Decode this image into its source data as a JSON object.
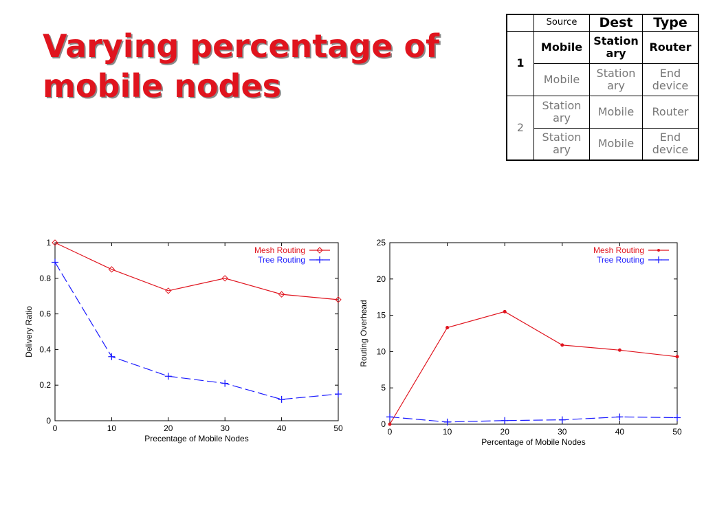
{
  "title": {
    "line1": "Varying percentage of",
    "line2": "mobile nodes"
  },
  "table": {
    "headers": [
      "",
      "Source",
      "Dest",
      "Type"
    ],
    "groups": [
      {
        "label": "1",
        "rows": [
          [
            "Mobile",
            "Station\nary",
            "Router"
          ],
          [
            "Mobile",
            "Station\nary",
            "End\ndevice"
          ]
        ]
      },
      {
        "label": "2",
        "rows": [
          [
            "Station\nary",
            "Mobile",
            "Router"
          ],
          [
            "Station\nary",
            "Mobile",
            "End\ndevice"
          ]
        ]
      }
    ]
  },
  "colors": {
    "title": "#e0141e",
    "mesh": "#e0141e",
    "tree": "#1a1aff"
  },
  "chart_data": [
    {
      "type": "line",
      "xlabel": "Precentage of Mobile Nodes",
      "ylabel": "Delivery Ratio",
      "xlim": [
        0,
        50
      ],
      "ylim": [
        0,
        1
      ],
      "x_ticks": [
        0,
        10,
        20,
        30,
        40,
        50
      ],
      "y_ticks": [
        0,
        0.2,
        0.4,
        0.6,
        0.8,
        1
      ],
      "y_tick_labels": [
        "0",
        "0.2",
        "0.4",
        "0.6",
        "0.8",
        "1"
      ],
      "legend_position": "top-right",
      "series": [
        {
          "name": "Mesh Routing",
          "x": [
            0,
            10,
            20,
            30,
            40,
            50
          ],
          "y": [
            1.0,
            0.85,
            0.73,
            0.8,
            0.71,
            0.68
          ],
          "marker": "diamond",
          "style": "solid"
        },
        {
          "name": "Tree Routing",
          "x": [
            0,
            10,
            20,
            30,
            40,
            50
          ],
          "y": [
            0.89,
            0.36,
            0.25,
            0.21,
            0.12,
            0.15
          ],
          "marker": "plus",
          "style": "dashed"
        }
      ]
    },
    {
      "type": "line",
      "xlabel": "Percentage of Mobile Nodes",
      "ylabel": "Routing Overhead",
      "xlim": [
        0,
        50
      ],
      "ylim": [
        0,
        25
      ],
      "x_ticks": [
        0,
        10,
        20,
        30,
        40,
        50
      ],
      "y_ticks": [
        0,
        5,
        10,
        15,
        20,
        25
      ],
      "y_tick_labels": [
        "0",
        "5",
        "10",
        "15",
        "20",
        "25"
      ],
      "legend_position": "top-right",
      "series": [
        {
          "name": "Mesh Routing",
          "x": [
            0,
            10,
            20,
            30,
            40,
            50
          ],
          "y": [
            0,
            13.3,
            15.5,
            10.9,
            10.2,
            9.3
          ],
          "marker": "dot",
          "style": "solid"
        },
        {
          "name": "Tree Routing",
          "x": [
            0,
            10,
            20,
            30,
            40,
            50
          ],
          "y": [
            1.0,
            0.3,
            0.5,
            0.6,
            1.0,
            0.9
          ],
          "marker": "plus",
          "style": "dashed"
        }
      ]
    }
  ]
}
